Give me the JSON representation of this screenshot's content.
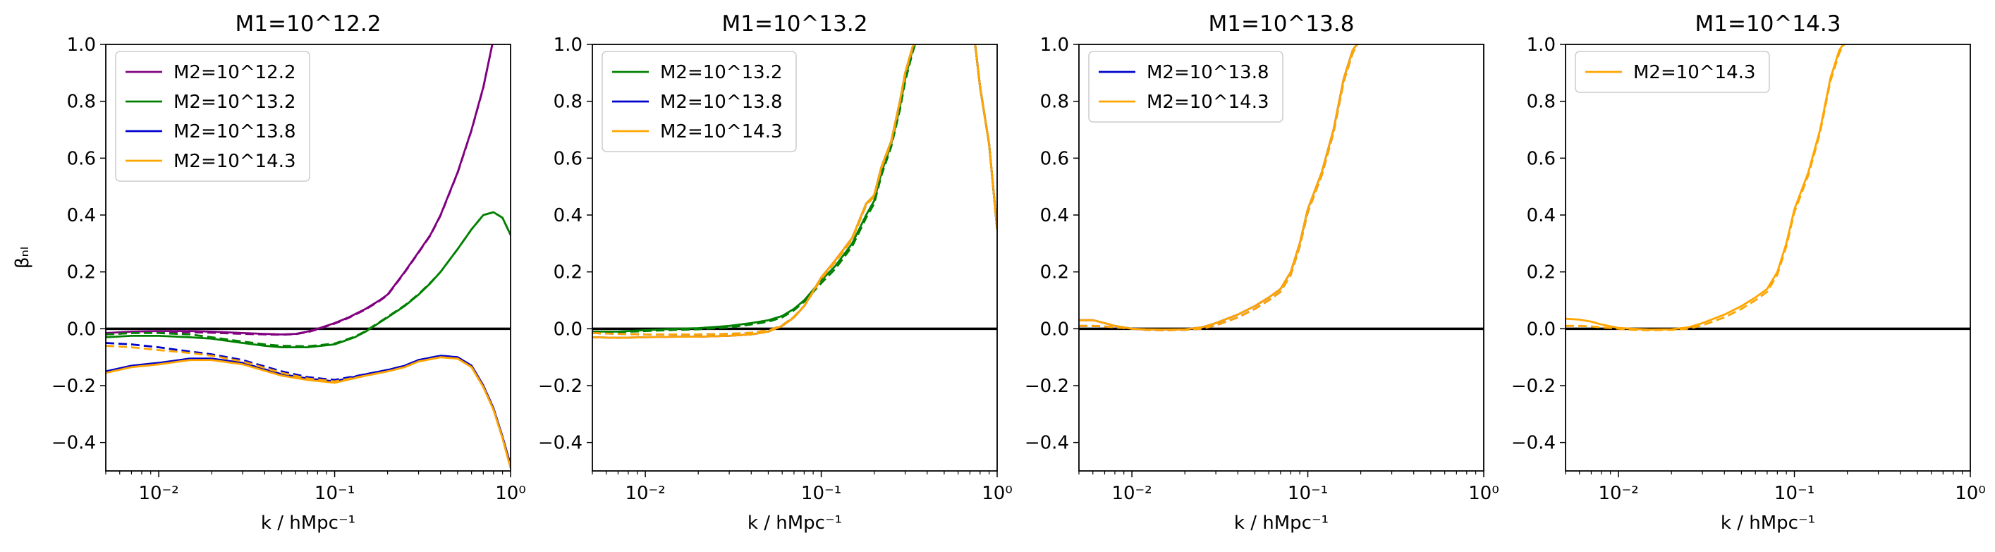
{
  "chart_data": [
    {
      "type": "line",
      "title": "M1=10^12.2",
      "xlabel": "k / hMpc⁻¹",
      "ylabel": "βₙₗ",
      "xscale": "log",
      "xlim": [
        0.005,
        1.0
      ],
      "ylim": [
        -0.5,
        1.0
      ],
      "xtick_labels": [
        "10⁻²",
        "10⁻¹",
        "10⁰"
      ],
      "ytick_labels": [
        "−0.4",
        "−0.2",
        "0.0",
        "0.2",
        "0.4",
        "0.6",
        "0.8",
        "1.0"
      ],
      "legend_position": "upper-left",
      "series": [
        {
          "name": "M2=10^12.2",
          "color": "#800080",
          "x": [
            0.005,
            0.007,
            0.01,
            0.015,
            0.02,
            0.03,
            0.04,
            0.05,
            0.06,
            0.07,
            0.08,
            0.1,
            0.12,
            0.15,
            0.18,
            0.2,
            0.25,
            0.3,
            0.35,
            0.4,
            0.5,
            0.6,
            0.7,
            0.8
          ],
          "y": [
            -0.015,
            -0.01,
            -0.008,
            -0.008,
            -0.01,
            -0.015,
            -0.018,
            -0.02,
            -0.018,
            -0.01,
            0.0,
            0.02,
            0.04,
            0.07,
            0.1,
            0.12,
            0.2,
            0.27,
            0.33,
            0.4,
            0.55,
            0.7,
            0.85,
            1.02
          ],
          "y_dashed": [
            -0.02,
            -0.015,
            -0.012,
            -0.012,
            -0.014,
            -0.018,
            -0.02,
            -0.021,
            -0.019,
            -0.012,
            -0.002,
            0.018,
            0.038,
            0.068,
            0.098,
            0.118,
            0.198,
            0.268,
            0.328,
            0.398,
            0.548,
            0.698,
            0.848,
            1.02
          ]
        },
        {
          "name": "M2=10^13.2",
          "color": "#008000",
          "x": [
            0.005,
            0.007,
            0.01,
            0.015,
            0.02,
            0.03,
            0.04,
            0.05,
            0.07,
            0.1,
            0.13,
            0.15,
            0.2,
            0.25,
            0.3,
            0.35,
            0.4,
            0.5,
            0.6,
            0.7,
            0.8,
            0.9,
            1.0
          ],
          "y": [
            -0.03,
            -0.025,
            -0.025,
            -0.03,
            -0.035,
            -0.05,
            -0.06,
            -0.065,
            -0.065,
            -0.055,
            -0.03,
            -0.01,
            0.04,
            0.08,
            0.12,
            0.16,
            0.2,
            0.28,
            0.35,
            0.4,
            0.41,
            0.39,
            0.33
          ],
          "y_dashed": [
            -0.02,
            -0.015,
            -0.015,
            -0.02,
            -0.03,
            -0.045,
            -0.055,
            -0.06,
            -0.062,
            -0.052,
            -0.028,
            -0.008,
            0.042,
            0.082,
            0.122,
            0.162,
            0.2,
            0.28,
            0.35,
            0.4,
            0.41,
            0.39,
            0.33
          ]
        },
        {
          "name": "M2=10^13.8",
          "color": "#0000cc",
          "x": [
            0.005,
            0.007,
            0.01,
            0.015,
            0.02,
            0.03,
            0.05,
            0.07,
            0.1,
            0.15,
            0.2,
            0.25,
            0.3,
            0.4,
            0.5,
            0.6,
            0.7,
            0.8,
            0.9,
            1.0
          ],
          "y": [
            -0.15,
            -0.13,
            -0.12,
            -0.105,
            -0.105,
            -0.12,
            -0.16,
            -0.175,
            -0.185,
            -0.16,
            -0.145,
            -0.13,
            -0.11,
            -0.095,
            -0.1,
            -0.13,
            -0.2,
            -0.28,
            -0.38,
            -0.48
          ],
          "y_dashed": [
            -0.05,
            -0.055,
            -0.065,
            -0.08,
            -0.09,
            -0.11,
            -0.15,
            -0.17,
            -0.18,
            -0.16,
            -0.145,
            -0.13,
            -0.11,
            -0.095,
            -0.1,
            -0.13,
            -0.2,
            -0.28,
            -0.38,
            -0.48
          ]
        },
        {
          "name": "M2=10^14.3",
          "color": "#ffa500",
          "x": [
            0.005,
            0.007,
            0.01,
            0.015,
            0.02,
            0.03,
            0.05,
            0.07,
            0.1,
            0.15,
            0.2,
            0.25,
            0.3,
            0.4,
            0.5,
            0.6,
            0.7,
            0.8,
            0.9,
            1.0
          ],
          "y": [
            -0.155,
            -0.135,
            -0.125,
            -0.11,
            -0.11,
            -0.125,
            -0.165,
            -0.18,
            -0.19,
            -0.165,
            -0.15,
            -0.135,
            -0.115,
            -0.1,
            -0.105,
            -0.135,
            -0.205,
            -0.285,
            -0.385,
            -0.49
          ],
          "y_dashed": [
            -0.06,
            -0.065,
            -0.075,
            -0.085,
            -0.095,
            -0.115,
            -0.155,
            -0.175,
            -0.185,
            -0.165,
            -0.15,
            -0.135,
            -0.115,
            -0.1,
            -0.105,
            -0.135,
            -0.205,
            -0.285,
            -0.385,
            -0.49
          ]
        }
      ]
    },
    {
      "type": "line",
      "title": "M1=10^13.2",
      "xlabel": "k / hMpc⁻¹",
      "ylabel": "",
      "xscale": "log",
      "xlim": [
        0.005,
        1.0
      ],
      "ylim": [
        -0.5,
        1.0
      ],
      "xtick_labels": [
        "10⁻²",
        "10⁻¹",
        "10⁰"
      ],
      "ytick_labels": [
        "−0.4",
        "−0.2",
        "0.0",
        "0.2",
        "0.4",
        "0.6",
        "0.8",
        "1.0"
      ],
      "legend_position": "upper-left",
      "series": [
        {
          "name": "M2=10^13.2",
          "color": "#008000",
          "x": [
            0.005,
            0.007,
            0.01,
            0.015,
            0.02,
            0.03,
            0.04,
            0.05,
            0.06,
            0.07,
            0.08,
            0.1,
            0.12,
            0.15,
            0.18,
            0.2,
            0.22,
            0.25,
            0.28,
            0.3,
            0.33,
            0.35,
            0.7,
            0.75,
            0.8,
            0.9,
            1.0
          ],
          "y": [
            -0.01,
            -0.01,
            -0.005,
            0.0,
            0.002,
            0.01,
            0.02,
            0.03,
            0.045,
            0.07,
            0.1,
            0.17,
            0.22,
            0.3,
            0.4,
            0.45,
            0.55,
            0.65,
            0.78,
            0.88,
            0.98,
            1.02,
            1.02,
            1.0,
            0.85,
            0.65,
            0.35
          ],
          "y_dashed": [
            -0.012,
            -0.012,
            -0.008,
            -0.004,
            -0.002,
            0.005,
            0.015,
            0.025,
            0.04,
            0.065,
            0.095,
            0.16,
            0.21,
            0.29,
            0.39,
            0.44,
            0.54,
            0.64,
            0.77,
            0.87,
            0.97,
            1.02,
            1.02,
            1.0,
            0.85,
            0.65,
            0.35
          ]
        },
        {
          "name": "M2=10^13.8",
          "color": "#0000cc",
          "x": [
            0.005,
            0.007,
            0.01,
            0.015,
            0.02,
            0.03,
            0.04,
            0.05,
            0.06,
            0.07,
            0.08,
            0.1,
            0.12,
            0.15,
            0.18,
            0.2,
            0.22,
            0.25,
            0.28,
            0.3,
            0.33,
            0.35,
            0.7,
            0.75,
            0.8,
            0.9,
            1.0
          ],
          "y": [
            -0.03,
            -0.032,
            -0.03,
            -0.028,
            -0.028,
            -0.025,
            -0.02,
            -0.01,
            0.01,
            0.04,
            0.08,
            0.18,
            0.24,
            0.32,
            0.44,
            0.47,
            0.57,
            0.66,
            0.8,
            0.9,
            0.99,
            1.02,
            1.02,
            1.0,
            0.85,
            0.65,
            0.35
          ],
          "y_dashed": [
            -0.015,
            -0.018,
            -0.02,
            -0.02,
            -0.02,
            -0.018,
            -0.014,
            -0.006,
            0.012,
            0.042,
            0.08,
            0.175,
            0.235,
            0.315,
            0.435,
            0.465,
            0.565,
            0.655,
            0.795,
            0.895,
            0.985,
            1.02,
            1.02,
            1.0,
            0.85,
            0.65,
            0.35
          ]
        },
        {
          "name": "M2=10^14.3",
          "color": "#ffa500",
          "x": [
            0.005,
            0.007,
            0.01,
            0.015,
            0.02,
            0.03,
            0.04,
            0.05,
            0.06,
            0.07,
            0.08,
            0.1,
            0.12,
            0.15,
            0.18,
            0.2,
            0.22,
            0.25,
            0.28,
            0.3,
            0.33,
            0.35,
            0.7,
            0.75,
            0.8,
            0.9,
            1.0
          ],
          "y": [
            -0.03,
            -0.032,
            -0.03,
            -0.028,
            -0.028,
            -0.025,
            -0.02,
            -0.01,
            0.01,
            0.04,
            0.08,
            0.18,
            0.24,
            0.32,
            0.44,
            0.47,
            0.57,
            0.66,
            0.8,
            0.9,
            0.99,
            1.02,
            1.02,
            1.0,
            0.85,
            0.65,
            0.35
          ],
          "y_dashed": [
            -0.015,
            -0.018,
            -0.02,
            -0.02,
            -0.02,
            -0.018,
            -0.014,
            -0.006,
            0.012,
            0.042,
            0.08,
            0.175,
            0.235,
            0.315,
            0.435,
            0.465,
            0.565,
            0.655,
            0.795,
            0.895,
            0.985,
            1.02,
            1.02,
            1.0,
            0.85,
            0.65,
            0.35
          ]
        }
      ]
    },
    {
      "type": "line",
      "title": "M1=10^13.8",
      "xlabel": "k / hMpc⁻¹",
      "ylabel": "",
      "xscale": "log",
      "xlim": [
        0.005,
        1.0
      ],
      "ylim": [
        -0.5,
        1.0
      ],
      "xtick_labels": [
        "10⁻²",
        "10⁻¹",
        "10⁰"
      ],
      "ytick_labels": [
        "−0.4",
        "−0.2",
        "0.0",
        "0.2",
        "0.4",
        "0.6",
        "0.8",
        "1.0"
      ],
      "legend_position": "upper-left",
      "series": [
        {
          "name": "M2=10^13.8",
          "color": "#0000cc",
          "x": [
            0.005,
            0.006,
            0.007,
            0.008,
            0.01,
            0.012,
            0.015,
            0.02,
            0.025,
            0.03,
            0.04,
            0.05,
            0.06,
            0.07,
            0.08,
            0.09,
            0.1,
            0.12,
            0.14,
            0.16,
            0.18,
            0.2
          ],
          "y": [
            0.03,
            0.03,
            0.02,
            0.01,
            0.0,
            -0.002,
            -0.003,
            -0.002,
            0.005,
            0.02,
            0.05,
            0.08,
            0.11,
            0.14,
            0.2,
            0.3,
            0.42,
            0.55,
            0.7,
            0.88,
            0.98,
            1.02
          ],
          "y_dashed": [
            0.01,
            0.01,
            0.008,
            0.005,
            0.0,
            -0.004,
            -0.005,
            -0.004,
            0.0,
            0.012,
            0.04,
            0.07,
            0.1,
            0.13,
            0.19,
            0.29,
            0.41,
            0.54,
            0.69,
            0.87,
            0.97,
            1.02
          ]
        },
        {
          "name": "M2=10^14.3",
          "color": "#ffa500",
          "x": [
            0.005,
            0.006,
            0.007,
            0.008,
            0.01,
            0.012,
            0.015,
            0.02,
            0.025,
            0.03,
            0.04,
            0.05,
            0.06,
            0.07,
            0.08,
            0.09,
            0.1,
            0.12,
            0.14,
            0.16,
            0.18,
            0.2
          ],
          "y": [
            0.03,
            0.03,
            0.02,
            0.01,
            0.0,
            -0.002,
            -0.003,
            -0.002,
            0.005,
            0.02,
            0.05,
            0.08,
            0.11,
            0.14,
            0.2,
            0.3,
            0.42,
            0.55,
            0.7,
            0.88,
            0.98,
            1.02
          ],
          "y_dashed": [
            0.01,
            0.01,
            0.008,
            0.005,
            0.0,
            -0.004,
            -0.005,
            -0.004,
            0.0,
            0.012,
            0.04,
            0.07,
            0.1,
            0.13,
            0.19,
            0.29,
            0.41,
            0.54,
            0.69,
            0.87,
            0.97,
            1.02
          ]
        }
      ]
    },
    {
      "type": "line",
      "title": "M1=10^14.3",
      "xlabel": "k / hMpc⁻¹",
      "ylabel": "",
      "xscale": "log",
      "xlim": [
        0.005,
        1.0
      ],
      "ylim": [
        -0.5,
        1.0
      ],
      "xtick_labels": [
        "10⁻²",
        "10⁻¹",
        "10⁰"
      ],
      "ytick_labels": [
        "−0.4",
        "−0.2",
        "0.0",
        "0.2",
        "0.4",
        "0.6",
        "0.8",
        "1.0"
      ],
      "legend_position": "upper-left",
      "series": [
        {
          "name": "M2=10^14.3",
          "color": "#ffa500",
          "x": [
            0.005,
            0.006,
            0.007,
            0.008,
            0.01,
            0.012,
            0.015,
            0.02,
            0.025,
            0.03,
            0.04,
            0.05,
            0.06,
            0.07,
            0.08,
            0.09,
            0.1,
            0.12,
            0.14,
            0.16,
            0.18,
            0.2
          ],
          "y": [
            0.035,
            0.032,
            0.025,
            0.015,
            0.003,
            0.0,
            -0.003,
            -0.002,
            0.005,
            0.02,
            0.05,
            0.08,
            0.11,
            0.14,
            0.2,
            0.3,
            0.42,
            0.55,
            0.7,
            0.88,
            0.98,
            1.02
          ],
          "y_dashed": [
            0.01,
            0.01,
            0.008,
            0.005,
            0.0,
            -0.004,
            -0.005,
            -0.004,
            0.0,
            0.012,
            0.04,
            0.07,
            0.1,
            0.13,
            0.19,
            0.29,
            0.41,
            0.54,
            0.69,
            0.87,
            0.97,
            1.02
          ]
        }
      ]
    }
  ]
}
